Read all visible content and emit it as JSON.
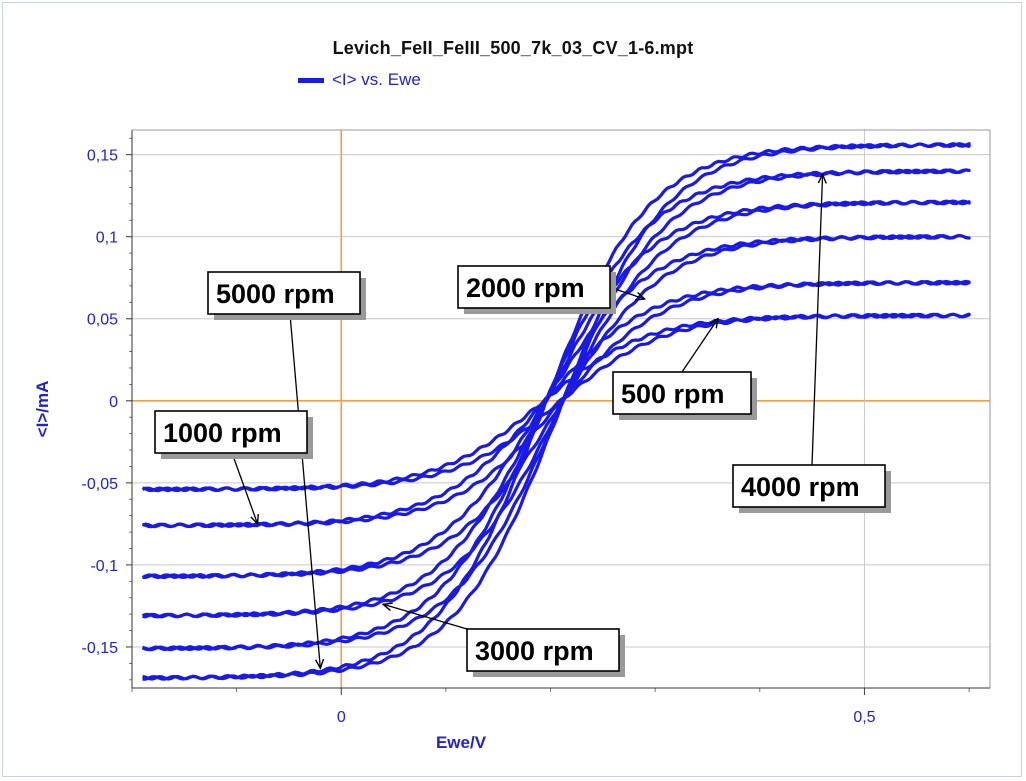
{
  "chart_data": {
    "type": "line",
    "title": "Levich_FeII_FeIII_500_7k_03_CV_1-6.mpt",
    "xlabel": "Ewe/V",
    "ylabel": "<I>/mA",
    "xlim": [
      -0.2,
      0.62
    ],
    "ylim": [
      -0.175,
      0.165
    ],
    "x_ticks": [
      0,
      0.5
    ],
    "x_tick_labels": [
      "0",
      "0,5"
    ],
    "y_ticks": [
      0.15,
      0.1,
      0.05,
      0,
      -0.05,
      -0.1,
      -0.15
    ],
    "y_tick_labels": [
      "0,15",
      "0,1",
      "0,05",
      "0",
      "-0,05",
      "-0,1",
      "-0,15"
    ],
    "legend_position": "top-left",
    "series_color": "#1a1ae6",
    "reference_line_color": "#f0a040",
    "curve_shape": {
      "e_half": 0.2,
      "steepness": 0.05
    },
    "series": [
      {
        "name": "<I> vs. Ewe",
        "label": "500 rpm",
        "i_lim_anodic": 0.052,
        "i_lim_cathodic": -0.054
      },
      {
        "name": "<I> vs. Ewe",
        "label": "1000 rpm",
        "i_lim_anodic": 0.072,
        "i_lim_cathodic": -0.076
      },
      {
        "name": "<I> vs. Ewe",
        "label": "2000 rpm",
        "i_lim_anodic": 0.1,
        "i_lim_cathodic": -0.107
      },
      {
        "name": "<I> vs. Ewe",
        "label": "3000 rpm",
        "i_lim_anodic": 0.121,
        "i_lim_cathodic": -0.131
      },
      {
        "name": "<I> vs. Ewe",
        "label": "4000 rpm",
        "i_lim_anodic": 0.14,
        "i_lim_cathodic": -0.151
      },
      {
        "name": "<I> vs. Ewe",
        "label": "5000 rpm",
        "i_lim_anodic": 0.156,
        "i_lim_cathodic": -0.169
      }
    ],
    "annotations": [
      {
        "text": "5000 rpm",
        "points_to": {
          "x": -0.02,
          "y": -0.163
        }
      },
      {
        "text": "1000 rpm",
        "points_to": {
          "x": -0.08,
          "y": -0.075
        }
      },
      {
        "text": "2000 rpm",
        "points_to": {
          "x": 0.29,
          "y": 0.062
        }
      },
      {
        "text": "500 rpm",
        "points_to": {
          "x": 0.36,
          "y": 0.05
        }
      },
      {
        "text": "4000 rpm",
        "points_to": {
          "x": 0.46,
          "y": 0.138
        }
      },
      {
        "text": "3000 rpm",
        "points_to": {
          "x": 0.04,
          "y": -0.124
        }
      }
    ]
  }
}
